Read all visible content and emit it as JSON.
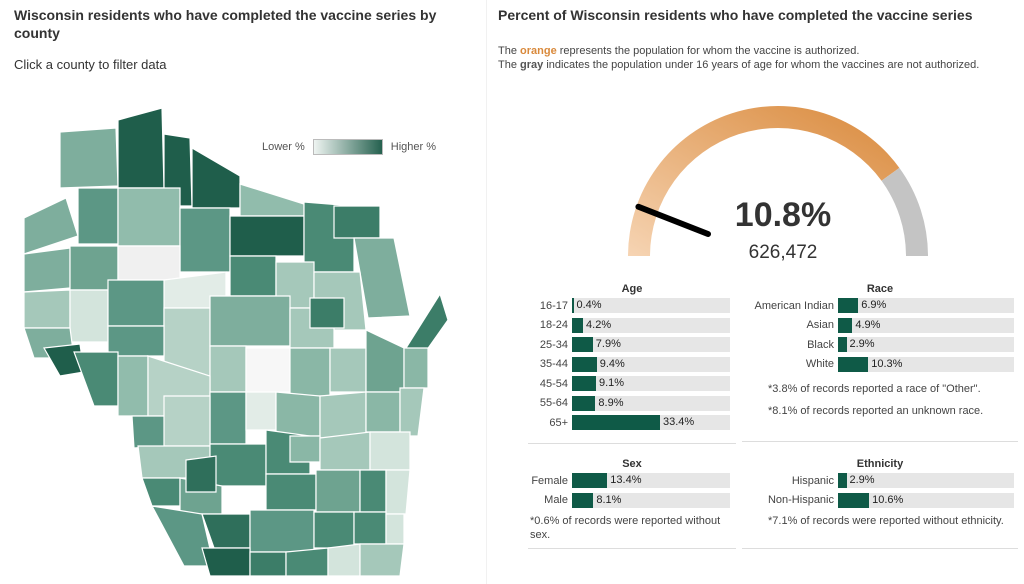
{
  "map_section": {
    "title": "Wisconsin residents who have completed the vaccine series by county",
    "hint": "Click a county to filter data",
    "legend": {
      "low_label": "Lower %",
      "high_label": "Higher %"
    }
  },
  "summary": {
    "title": "Percent of Wisconsin residents who have completed the vaccine series",
    "note_prefix_1": "The ",
    "note_orange": "orange",
    "note_suffix_1": " represents the population for whom the vaccine is authorized.",
    "note_prefix_2": "The ",
    "note_gray": "gray",
    "note_suffix_2": " indicates the population under 16 years of age for whom the vaccines are not authorized.",
    "percent": "10.8%",
    "count": "626,472",
    "percent_value": 10.8,
    "authorized_share": 0.8,
    "colors": {
      "orange": "#d9893b",
      "orange_light": "#f6d4b3",
      "gray": "#c4c4c4",
      "bar": "#0f5a47",
      "track": "#e6e6e6"
    }
  },
  "age": {
    "title": "Age",
    "rows": [
      {
        "label": "16-17",
        "value": "0.4%",
        "pct": 0.4
      },
      {
        "label": "18-24",
        "value": "4.2%",
        "pct": 4.2
      },
      {
        "label": "25-34",
        "value": "7.9%",
        "pct": 7.9
      },
      {
        "label": "35-44",
        "value": "9.4%",
        "pct": 9.4
      },
      {
        "label": "45-54",
        "value": "9.1%",
        "pct": 9.1
      },
      {
        "label": "55-64",
        "value": "8.9%",
        "pct": 8.9
      },
      {
        "label": "65+",
        "value": "33.4%",
        "pct": 33.4
      }
    ]
  },
  "race": {
    "title": "Race",
    "rows": [
      {
        "label": "American Indian",
        "value": "6.9%",
        "pct": 6.9
      },
      {
        "label": "Asian",
        "value": "4.9%",
        "pct": 4.9
      },
      {
        "label": "Black",
        "value": "2.9%",
        "pct": 2.9
      },
      {
        "label": "White",
        "value": "10.3%",
        "pct": 10.3
      }
    ],
    "footnote_1": "*3.8% of records reported a race of \"Other\".",
    "footnote_2": "*8.1% of records reported an unknown race."
  },
  "sex": {
    "title": "Sex",
    "rows": [
      {
        "label": "Female",
        "value": "13.4%",
        "pct": 13.4
      },
      {
        "label": "Male",
        "value": "8.1%",
        "pct": 8.1
      }
    ],
    "footnote": "*0.6% of records were reported without sex."
  },
  "ethnicity": {
    "title": "Ethnicity",
    "rows": [
      {
        "label": "Hispanic",
        "value": "2.9%",
        "pct": 2.9
      },
      {
        "label": "Non-Hispanic",
        "value": "10.6%",
        "pct": 10.6
      }
    ],
    "footnote": "*7.1% of records were reported without ethnicity."
  },
  "county_shades": [
    "#7eae9d",
    "#3c7d68",
    "#1f5e4b",
    "#91bcac",
    "#5c9785",
    "#4a8a75",
    "#a5c8ba",
    "#f0f0f0",
    "#e2ece7",
    "#6ea390",
    "#b6d2c6",
    "#8ab7a6",
    "#d3e4dc",
    "#2f6f5b",
    "#f7f7f7"
  ]
}
